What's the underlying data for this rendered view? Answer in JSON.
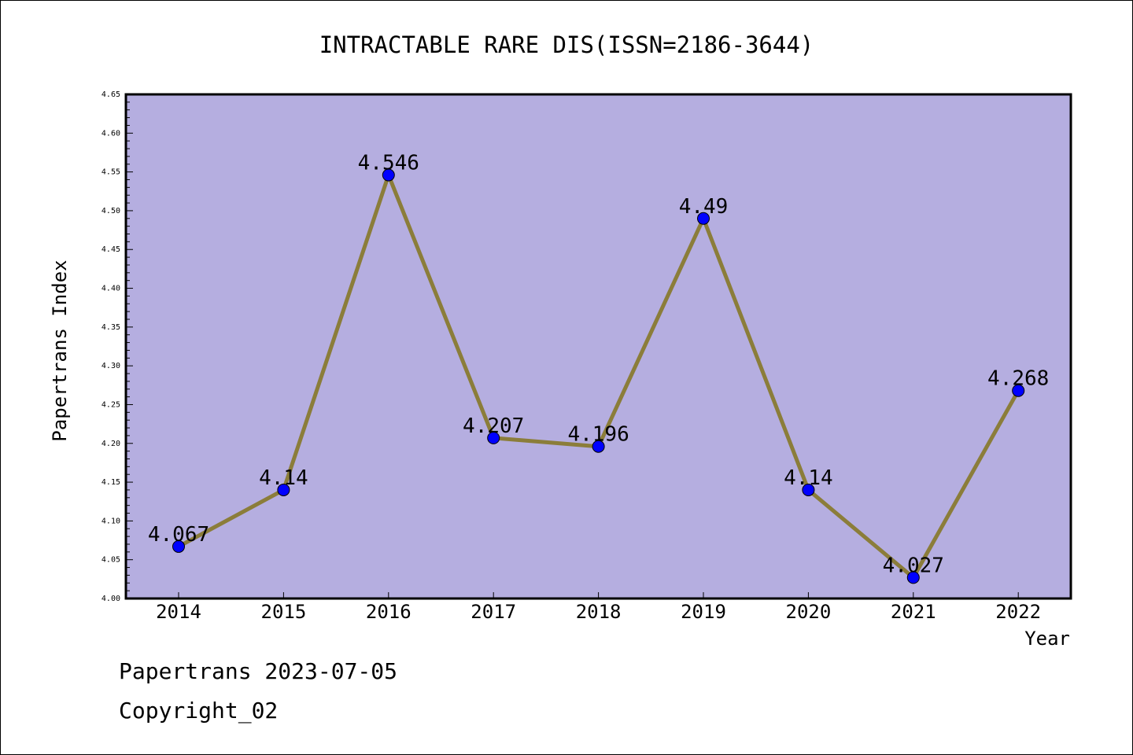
{
  "chart_data": {
    "type": "line",
    "title": "INTRACTABLE RARE DIS(ISSN=2186-3644)",
    "xlabel": "Year",
    "ylabel": "Papertrans Index",
    "categories": [
      "2014",
      "2015",
      "2016",
      "2017",
      "2018",
      "2019",
      "2020",
      "2021",
      "2022"
    ],
    "series": [
      {
        "values": [
          4.067,
          4.14,
          4.546,
          4.207,
          4.196,
          4.49,
          4.14,
          4.027,
          4.268
        ],
        "data_labels": [
          "4.067",
          "4.14",
          "4.546",
          "4.207",
          "4.196",
          "4.49",
          "4.14",
          "4.027",
          "4.268"
        ]
      }
    ],
    "ylim": [
      4.0,
      4.65
    ],
    "yticks": [
      "4.00",
      "4.05",
      "4.10",
      "4.15",
      "4.20",
      "4.25",
      "4.30",
      "4.35",
      "4.40",
      "4.45",
      "4.50",
      "4.55",
      "4.60",
      "4.65"
    ],
    "grid": false,
    "colors": {
      "plot_background": "#b5aee0",
      "line": "#8b7d3a",
      "marker": "#0000ff"
    }
  },
  "footer": {
    "date_text": "Papertrans 2023-07-05",
    "copyright_text": "Copyright_02"
  }
}
